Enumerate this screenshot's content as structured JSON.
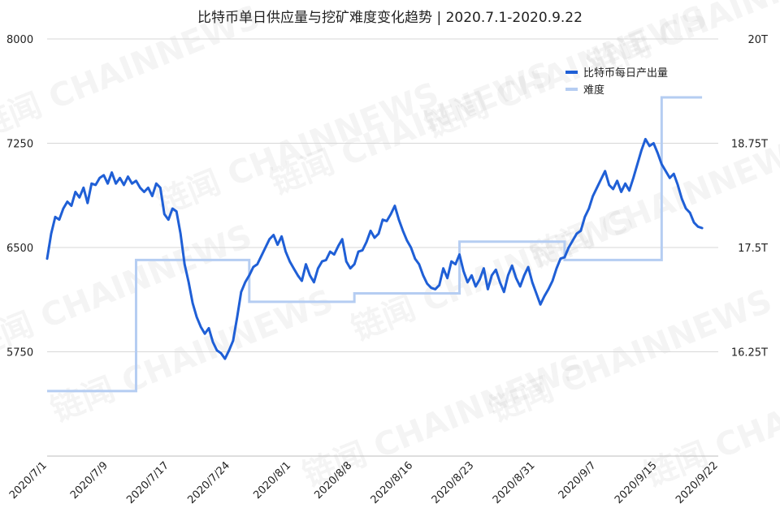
{
  "colors": {
    "production": "#1f5fd6",
    "difficulty": "#b5cdf2",
    "grid": "#d7d7d7",
    "text": "#222222"
  },
  "watermark_text": "链闻 CHAINNEWS",
  "chart_data": {
    "type": "line",
    "title": "比特币单日供应量与挖矿难度变化趋势 | 2020.7.1-2020.9.22",
    "x_start": "2020-07-01",
    "x_end": "2020-09-22",
    "x_tick_labels": [
      "2020/7/1",
      "2020/7/9",
      "2020/7/17",
      "2020/7/24",
      "2020/8/1",
      "2020/8/8",
      "2020/8/16",
      "2020/8/23",
      "2020/8/31",
      "2020/9/7",
      "2020/9/15",
      "2020/9/22"
    ],
    "y_left": {
      "min": 5000,
      "max": 8000,
      "ticks": [
        5750,
        6500,
        7250,
        8000
      ],
      "tick_labels": [
        "5750",
        "6500",
        "7250",
        "8000"
      ]
    },
    "y_right": {
      "min": 15,
      "max": 20,
      "unit": "T",
      "ticks": [
        16.25,
        17.5,
        18.75,
        20
      ],
      "tick_labels": [
        "16.25T",
        "17.5T",
        "18.75T",
        "20T"
      ]
    },
    "grid": true,
    "legend_position": "top-right",
    "series": [
      {
        "name": "比特币每日产出量",
        "axis": "left",
        "points": [
          [
            "2020-07-01",
            6420
          ],
          [
            "2020-07-01",
            6600
          ],
          [
            "2020-07-02",
            6720
          ],
          [
            "2020-07-02",
            6700
          ],
          [
            "2020-07-03",
            6780
          ],
          [
            "2020-07-03",
            6830
          ],
          [
            "2020-07-04",
            6800
          ],
          [
            "2020-07-04",
            6900
          ],
          [
            "2020-07-05",
            6860
          ],
          [
            "2020-07-05",
            6930
          ],
          [
            "2020-07-06",
            6820
          ],
          [
            "2020-07-06",
            6960
          ],
          [
            "2020-07-07",
            6950
          ],
          [
            "2020-07-07",
            7000
          ],
          [
            "2020-07-08",
            7020
          ],
          [
            "2020-07-08",
            6960
          ],
          [
            "2020-07-09",
            7040
          ],
          [
            "2020-07-09",
            6960
          ],
          [
            "2020-07-10",
            7000
          ],
          [
            "2020-07-10",
            6950
          ],
          [
            "2020-07-11",
            7010
          ],
          [
            "2020-07-11",
            6960
          ],
          [
            "2020-07-12",
            6980
          ],
          [
            "2020-07-12",
            6930
          ],
          [
            "2020-07-13",
            6900
          ],
          [
            "2020-07-13",
            6930
          ],
          [
            "2020-07-14",
            6870
          ],
          [
            "2020-07-14",
            6960
          ],
          [
            "2020-07-15",
            6930
          ],
          [
            "2020-07-15",
            6740
          ],
          [
            "2020-07-16",
            6700
          ],
          [
            "2020-07-16",
            6780
          ],
          [
            "2020-07-17",
            6760
          ],
          [
            "2020-07-17",
            6600
          ],
          [
            "2020-07-18",
            6380
          ],
          [
            "2020-07-18",
            6250
          ],
          [
            "2020-07-19",
            6100
          ],
          [
            "2020-07-19",
            6000
          ],
          [
            "2020-07-20",
            5930
          ],
          [
            "2020-07-20",
            5880
          ],
          [
            "2020-07-21",
            5920
          ],
          [
            "2020-07-21",
            5820
          ],
          [
            "2020-07-22",
            5760
          ],
          [
            "2020-07-22",
            5740
          ],
          [
            "2020-07-23",
            5700
          ],
          [
            "2020-07-23",
            5760
          ],
          [
            "2020-07-24",
            5830
          ],
          [
            "2020-07-24",
            6000
          ],
          [
            "2020-07-25",
            6180
          ],
          [
            "2020-07-25",
            6250
          ],
          [
            "2020-07-26",
            6300
          ],
          [
            "2020-07-26",
            6360
          ],
          [
            "2020-07-27",
            6380
          ],
          [
            "2020-07-27",
            6440
          ],
          [
            "2020-07-28",
            6500
          ],
          [
            "2020-07-28",
            6560
          ],
          [
            "2020-07-29",
            6590
          ],
          [
            "2020-07-29",
            6520
          ],
          [
            "2020-07-30",
            6580
          ],
          [
            "2020-07-30",
            6470
          ],
          [
            "2020-07-31",
            6400
          ],
          [
            "2020-07-31",
            6350
          ],
          [
            "2020-08-01",
            6300
          ],
          [
            "2020-08-01",
            6260
          ],
          [
            "2020-08-02",
            6380
          ],
          [
            "2020-08-02",
            6300
          ],
          [
            "2020-08-03",
            6250
          ],
          [
            "2020-08-03",
            6350
          ],
          [
            "2020-08-04",
            6400
          ],
          [
            "2020-08-04",
            6410
          ],
          [
            "2020-08-05",
            6470
          ],
          [
            "2020-08-05",
            6450
          ],
          [
            "2020-08-06",
            6510
          ],
          [
            "2020-08-06",
            6560
          ],
          [
            "2020-08-07",
            6400
          ],
          [
            "2020-08-07",
            6350
          ],
          [
            "2020-08-08",
            6380
          ],
          [
            "2020-08-08",
            6470
          ],
          [
            "2020-08-09",
            6480
          ],
          [
            "2020-08-09",
            6540
          ],
          [
            "2020-08-10",
            6620
          ],
          [
            "2020-08-10",
            6570
          ],
          [
            "2020-08-11",
            6600
          ],
          [
            "2020-08-11",
            6700
          ],
          [
            "2020-08-12",
            6690
          ],
          [
            "2020-08-12",
            6740
          ],
          [
            "2020-08-13",
            6800
          ],
          [
            "2020-08-13",
            6700
          ],
          [
            "2020-08-14",
            6620
          ],
          [
            "2020-08-14",
            6550
          ],
          [
            "2020-08-15",
            6500
          ],
          [
            "2020-08-15",
            6420
          ],
          [
            "2020-08-16",
            6380
          ],
          [
            "2020-08-16",
            6300
          ],
          [
            "2020-08-17",
            6240
          ],
          [
            "2020-08-17",
            6210
          ],
          [
            "2020-08-18",
            6200
          ],
          [
            "2020-08-18",
            6230
          ],
          [
            "2020-08-19",
            6350
          ],
          [
            "2020-08-19",
            6280
          ],
          [
            "2020-08-20",
            6400
          ],
          [
            "2020-08-20",
            6380
          ],
          [
            "2020-08-21",
            6450
          ],
          [
            "2020-08-21",
            6330
          ],
          [
            "2020-08-22",
            6250
          ],
          [
            "2020-08-22",
            6300
          ],
          [
            "2020-08-23",
            6220
          ],
          [
            "2020-08-23",
            6270
          ],
          [
            "2020-08-24",
            6350
          ],
          [
            "2020-08-24",
            6200
          ],
          [
            "2020-08-25",
            6300
          ],
          [
            "2020-08-25",
            6340
          ],
          [
            "2020-08-26",
            6250
          ],
          [
            "2020-08-26",
            6180
          ],
          [
            "2020-08-27",
            6300
          ],
          [
            "2020-08-27",
            6370
          ],
          [
            "2020-08-28",
            6280
          ],
          [
            "2020-08-28",
            6220
          ],
          [
            "2020-08-29",
            6300
          ],
          [
            "2020-08-29",
            6360
          ],
          [
            "2020-08-30",
            6250
          ],
          [
            "2020-08-30",
            6170
          ],
          [
            "2020-08-31",
            6090
          ],
          [
            "2020-08-31",
            6150
          ],
          [
            "2020-09-01",
            6200
          ],
          [
            "2020-09-01",
            6260
          ],
          [
            "2020-09-02",
            6350
          ],
          [
            "2020-09-02",
            6420
          ],
          [
            "2020-09-03",
            6430
          ],
          [
            "2020-09-03",
            6500
          ],
          [
            "2020-09-04",
            6550
          ],
          [
            "2020-09-04",
            6600
          ],
          [
            "2020-09-05",
            6620
          ],
          [
            "2020-09-05",
            6720
          ],
          [
            "2020-09-06",
            6780
          ],
          [
            "2020-09-06",
            6870
          ],
          [
            "2020-09-07",
            6930
          ],
          [
            "2020-09-07",
            6990
          ],
          [
            "2020-09-08",
            7050
          ],
          [
            "2020-09-08",
            6950
          ],
          [
            "2020-09-09",
            6920
          ],
          [
            "2020-09-09",
            6980
          ],
          [
            "2020-09-10",
            6900
          ],
          [
            "2020-09-10",
            6960
          ],
          [
            "2020-09-11",
            6910
          ],
          [
            "2020-09-11",
            7000
          ],
          [
            "2020-09-12",
            7100
          ],
          [
            "2020-09-12",
            7200
          ],
          [
            "2020-09-13",
            7280
          ],
          [
            "2020-09-13",
            7230
          ],
          [
            "2020-09-14",
            7250
          ],
          [
            "2020-09-14",
            7180
          ],
          [
            "2020-09-15",
            7100
          ],
          [
            "2020-09-15",
            7050
          ],
          [
            "2020-09-16",
            7000
          ],
          [
            "2020-09-16",
            7030
          ],
          [
            "2020-09-17",
            6950
          ],
          [
            "2020-09-17",
            6850
          ],
          [
            "2020-09-18",
            6780
          ],
          [
            "2020-09-18",
            6750
          ],
          [
            "2020-09-19",
            6680
          ],
          [
            "2020-09-19",
            6650
          ],
          [
            "2020-09-20",
            6640
          ]
        ]
      },
      {
        "name": "难度",
        "axis": "right",
        "unit": "T",
        "steps": [
          [
            "2020-07-01",
            15.78
          ],
          [
            "2020-07-12",
            17.35
          ],
          [
            "2020-07-26",
            16.85
          ],
          [
            "2020-08-08",
            16.95
          ],
          [
            "2020-08-21",
            17.57
          ],
          [
            "2020-09-03",
            17.35
          ],
          [
            "2020-09-15",
            19.3
          ],
          [
            "2020-09-20",
            19.3
          ]
        ]
      }
    ]
  }
}
